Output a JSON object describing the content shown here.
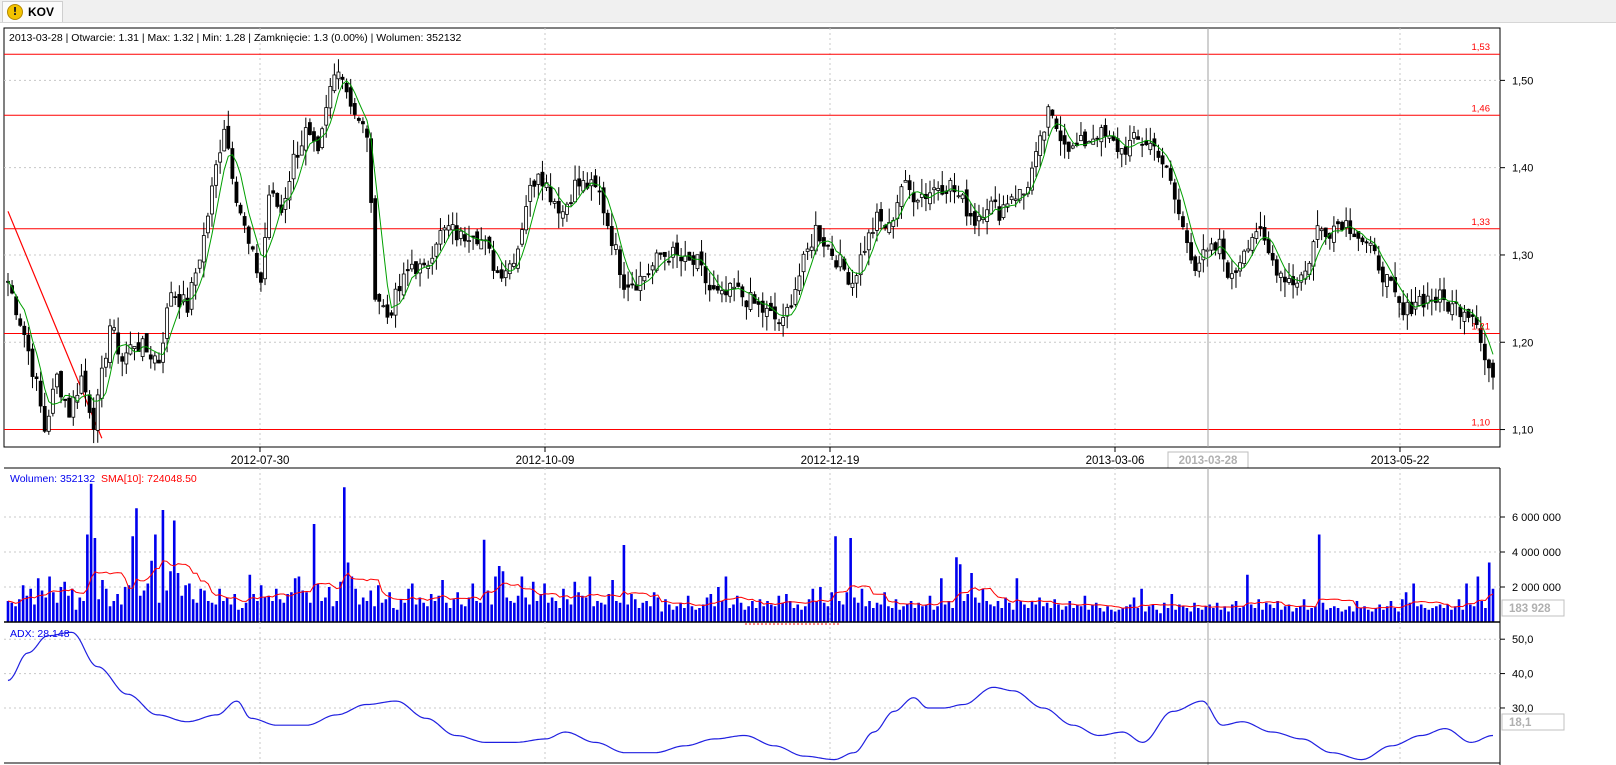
{
  "tab": {
    "label": "KOV",
    "icon": "warning-icon"
  },
  "info_bar": "2013-03-28 | Otwarcie: 1.31 | Max: 1.32 | Min: 1.28 | Zamknięcie: 1.3 (0.00%)  | Wolumen: 352132",
  "colors": {
    "candle": "#000000",
    "sma": "#008000",
    "level": "#ff0000",
    "volume": "#0000ee",
    "volume_sma": "#ff0000",
    "adx": "#2020e0",
    "grid": "#c8c8c8"
  },
  "chart_data": [
    {
      "type": "candlestick",
      "title": "2013-03-28 | Otwarcie: 1.31 | Max: 1.32 | Min: 1.28 | Zamknięcie: 1.3 (0.00%)  | Wolumen: 352132",
      "ylim": [
        1.08,
        1.56
      ],
      "y_ticks": [
        "1,10",
        "1,20",
        "1,30",
        "1,40",
        "1,50"
      ],
      "x_ticks": [
        "2012-07-30",
        "2012-10-09",
        "2012-12-19",
        "2013-03-06",
        "2013-05-22"
      ],
      "cursor_label": "2013-03-28",
      "levels": [
        {
          "value": 1.53,
          "label": "1,53"
        },
        {
          "value": 1.46,
          "label": "1,46"
        },
        {
          "value": 1.33,
          "label": "1,33"
        },
        {
          "value": 1.21,
          "label": "1,21"
        },
        {
          "value": 1.1,
          "label": "1,10"
        }
      ],
      "trendline": [
        [
          0,
          1.35
        ],
        [
          23,
          1.09
        ]
      ],
      "grid": true,
      "anchors": [
        [
          0,
          1.27
        ],
        [
          4,
          1.21
        ],
        [
          7,
          1.15
        ],
        [
          9,
          1.1
        ],
        [
          12,
          1.16
        ],
        [
          15,
          1.12
        ],
        [
          18,
          1.16
        ],
        [
          21,
          1.11
        ],
        [
          22,
          1.13
        ],
        [
          25,
          1.22
        ],
        [
          28,
          1.18
        ],
        [
          31,
          1.2
        ],
        [
          34,
          1.19
        ],
        [
          37,
          1.18
        ],
        [
          40,
          1.26
        ],
        [
          44,
          1.24
        ],
        [
          48,
          1.32
        ],
        [
          51,
          1.4
        ],
        [
          53,
          1.45
        ],
        [
          56,
          1.37
        ],
        [
          59,
          1.31
        ],
        [
          62,
          1.27
        ],
        [
          64,
          1.37
        ],
        [
          67,
          1.35
        ],
        [
          70,
          1.41
        ],
        [
          73,
          1.44
        ],
        [
          76,
          1.41
        ],
        [
          79,
          1.49
        ],
        [
          81,
          1.52
        ],
        [
          83,
          1.49
        ],
        [
          86,
          1.45
        ],
        [
          88,
          1.44
        ],
        [
          90,
          1.26
        ],
        [
          93,
          1.23
        ],
        [
          96,
          1.26
        ],
        [
          99,
          1.29
        ],
        [
          102,
          1.28
        ],
        [
          105,
          1.32
        ],
        [
          108,
          1.33
        ],
        [
          111,
          1.32
        ],
        [
          114,
          1.33
        ],
        [
          117,
          1.31
        ],
        [
          120,
          1.28
        ],
        [
          123,
          1.29
        ],
        [
          125,
          1.31
        ],
        [
          127,
          1.36
        ],
        [
          130,
          1.4
        ],
        [
          133,
          1.37
        ],
        [
          136,
          1.35
        ],
        [
          139,
          1.38
        ],
        [
          142,
          1.38
        ],
        [
          145,
          1.37
        ],
        [
          148,
          1.32
        ],
        [
          151,
          1.27
        ],
        [
          154,
          1.27
        ],
        [
          157,
          1.28
        ],
        [
          160,
          1.3
        ],
        [
          163,
          1.3
        ],
        [
          166,
          1.29
        ],
        [
          169,
          1.29
        ],
        [
          172,
          1.26
        ],
        [
          175,
          1.25
        ],
        [
          178,
          1.26
        ],
        [
          181,
          1.25
        ],
        [
          184,
          1.24
        ],
        [
          187,
          1.23
        ],
        [
          190,
          1.22
        ],
        [
          192,
          1.25
        ],
        [
          195,
          1.29
        ],
        [
          198,
          1.33
        ],
        [
          201,
          1.31
        ],
        [
          204,
          1.29
        ],
        [
          207,
          1.27
        ],
        [
          210,
          1.31
        ],
        [
          213,
          1.34
        ],
        [
          216,
          1.33
        ],
        [
          219,
          1.38
        ],
        [
          222,
          1.37
        ],
        [
          225,
          1.37
        ],
        [
          228,
          1.38
        ],
        [
          231,
          1.38
        ],
        [
          234,
          1.36
        ],
        [
          237,
          1.34
        ],
        [
          240,
          1.36
        ],
        [
          243,
          1.35
        ],
        [
          246,
          1.37
        ],
        [
          249,
          1.37
        ],
        [
          252,
          1.41
        ],
        [
          255,
          1.46
        ],
        [
          258,
          1.44
        ],
        [
          261,
          1.42
        ],
        [
          264,
          1.43
        ],
        [
          267,
          1.44
        ],
        [
          270,
          1.43
        ],
        [
          273,
          1.42
        ],
        [
          276,
          1.43
        ],
        [
          279,
          1.43
        ],
        [
          282,
          1.42
        ],
        [
          285,
          1.38
        ],
        [
          288,
          1.33
        ],
        [
          291,
          1.29
        ],
        [
          294,
          1.3
        ],
        [
          297,
          1.31
        ],
        [
          300,
          1.27
        ],
        [
          303,
          1.31
        ],
        [
          306,
          1.33
        ],
        [
          309,
          1.3
        ],
        [
          312,
          1.28
        ],
        [
          315,
          1.27
        ],
        [
          318,
          1.28
        ],
        [
          321,
          1.33
        ],
        [
          324,
          1.33
        ],
        [
          327,
          1.34
        ],
        [
          330,
          1.33
        ],
        [
          333,
          1.31
        ],
        [
          336,
          1.29
        ],
        [
          339,
          1.26
        ],
        [
          342,
          1.23
        ],
        [
          345,
          1.25
        ],
        [
          348,
          1.25
        ],
        [
          351,
          1.25
        ],
        [
          354,
          1.24
        ],
        [
          357,
          1.24
        ],
        [
          360,
          1.23
        ],
        [
          362,
          1.18
        ],
        [
          364,
          1.16
        ]
      ]
    },
    {
      "type": "bar",
      "title": "Wolumen: 352132",
      "series": [
        {
          "name": "Wolumen: 352132",
          "color": "#0000ee"
        },
        {
          "name": "SMA[10]: 724048.50",
          "color": "#ff0000"
        }
      ],
      "y_ticks": [
        "2 000 000",
        "4 000 000",
        "6 000 000"
      ],
      "value_label": "183 928",
      "ylim": [
        0,
        8000000
      ],
      "volume_m": [
        1.2,
        1.1,
        0.9,
        1.3,
        2.1,
        1.5,
        1.9,
        1.0,
        2.5,
        1.8,
        1.4,
        2.6,
        1.7,
        1.1,
        2.0,
        2.3,
        1.5,
        1.9,
        0.7,
        1.4,
        1.2,
        5.0,
        7.9,
        4.8,
        1.3,
        2.4,
        1.9,
        0.9,
        1.2,
        1.6,
        1.0,
        2.0,
        2.1,
        4.9,
        6.5,
        1.5,
        1.8,
        2.2,
        3.5,
        5.0,
        1.1,
        6.4,
        1.8,
        2.9,
        5.8,
        2.8,
        1.5,
        2.1,
        2.2,
        1.3,
        1.1,
        1.9,
        1.8,
        1.2,
        1.1,
        1.0,
        1.9,
        1.2,
        1.4,
        1.0,
        1.6,
        0.7,
        0.8,
        1.1,
        2.7,
        1.6,
        1.2,
        2.1,
        1.4,
        1.5,
        1.2,
        1.9,
        1.3,
        1.1,
        1.6,
        1.7,
        2.5,
        2.6,
        1.8,
        1.7,
        1.1,
        5.6,
        2.2,
        1.2,
        1.4,
        2.0,
        0.9,
        1.2,
        2.3,
        7.7,
        3.4,
        2.6,
        1.9,
        1.0,
        1.4,
        1.2,
        1.8,
        0.9,
        2.1,
        1.1,
        1.3,
        1.7,
        0.8,
        0.7,
        1.3,
        1.1,
        1.9,
        2.2,
        1.0,
        1.4,
        1.1,
        0.9,
        1.6,
        1.2,
        1.5,
        2.4,
        1.1,
        0.8,
        1.3,
        1.7,
        1.0,
        0.9,
        1.4,
        2.2,
        1.2,
        1.1,
        4.7,
        1.8,
        1.0,
        2.6,
        3.2,
        2.9,
        1.4,
        1.2,
        1.1,
        1.5,
        2.6,
        1.4,
        1.0,
        2.3,
        1.2,
        1.6,
        2.2,
        1.1,
        1.4,
        1.2,
        0.8,
        1.9,
        1.3,
        1.0,
        2.3,
        1.7,
        1.5,
        1.4,
        2.6,
        0.9,
        1.2,
        1.1,
        1.0,
        1.6,
        2.4,
        1.2,
        1.1,
        4.4,
        1.0,
        1.6,
        1.3,
        0.8,
        1.1,
        1.2,
        0.9,
        1.7,
        1.4,
        0.6,
        1.3,
        1.0,
        0.7,
        0.9,
        1.1,
        0.8,
        1.5,
        0.9,
        0.7,
        0.8,
        1.0,
        1.4,
        1.6,
        0.9,
        2.0,
        1.2,
        2.6,
        0.8,
        1.0,
        1.5,
        1.1,
        0.7,
        0.9,
        1.2,
        0.8,
        1.3,
        0.9,
        1.2,
        1.0,
        0.9,
        1.5,
        1.1,
        1.6,
        1.2,
        0.8,
        1.0,
        0.7,
        0.9,
        1.3,
        1.9,
        1.2,
        2.0,
        1.1,
        0.9,
        1.7,
        4.9,
        1.2,
        1.0,
        1.7,
        4.8,
        1.4,
        1.1,
        1.9,
        0.9,
        1.2,
        0.8,
        1.1,
        1.0,
        1.7,
        0.9,
        0.8,
        1.3,
        0.7,
        0.9,
        1.0,
        1.2,
        0.8,
        1.1,
        0.9,
        1.0,
        1.5,
        0.7,
        0.9,
        2.5,
        1.0,
        1.2,
        0.8,
        3.7,
        3.3,
        1.2,
        1.6,
        2.8,
        1.4,
        1.1,
        1.9,
        1.2,
        1.0,
        0.9,
        1.2,
        0.8,
        1.4,
        1.1,
        0.7,
        2.5,
        1.2,
        1.0,
        0.8,
        1.2,
        1.0,
        1.4,
        0.9,
        1.1,
        0.8,
        1.3,
        1.0,
        0.7,
        0.9,
        1.2,
        0.8,
        1.0,
        0.9,
        1.5,
        0.7,
        1.0,
        1.1,
        0.8,
        0.6,
        0.9,
        0.7,
        0.6,
        0.7,
        0.8,
        0.9,
        1.0,
        1.4,
        0.8,
        1.9,
        0.6,
        0.9,
        1.0,
        0.7,
        0.5,
        1.1,
        0.8,
        1.6,
        0.7,
        1.0,
        0.9,
        0.8,
        0.6,
        1.1,
        0.8,
        0.7,
        0.9,
        1.0,
        0.8,
        1.1,
        0.7,
        0.9,
        0.6,
        1.0,
        1.2,
        0.8,
        0.9,
        2.7,
        1.0,
        0.8,
        1.3,
        0.7,
        1.1,
        1.0,
        0.8,
        1.2,
        0.7,
        0.9,
        1.0,
        0.6,
        0.8,
        0.9,
        1.3,
        0.7,
        0.8,
        0.9,
        5.0,
        1.1,
        0.7,
        0.8,
        0.9,
        0.8,
        0.6,
        0.7,
        0.9,
        0.6,
        1.2,
        0.8,
        0.9,
        0.7,
        0.6,
        0.8,
        1.0,
        0.7,
        0.9,
        1.2,
        0.8,
        0.6,
        1.3,
        1.7,
        1.1,
        2.2,
        0.9,
        1.0,
        0.8,
        0.7,
        0.8,
        0.9,
        1.0,
        0.8,
        1.0,
        0.7,
        0.9,
        1.3,
        0.7,
        2.2,
        1.0,
        0.9,
        2.6,
        1.2,
        0.8,
        3.4,
        1.9
      ]
    },
    {
      "type": "line",
      "title": "ADX: 28.148",
      "series": [
        {
          "name": "ADX: 28.148",
          "color": "#2020e0"
        }
      ],
      "y_ticks": [
        "30,0",
        "40,0",
        "50,0"
      ],
      "value_label": "18,1",
      "ylim": [
        14,
        55
      ],
      "adx_anchors": [
        [
          0,
          38
        ],
        [
          10,
          46
        ],
        [
          20,
          51
        ],
        [
          32,
          52
        ],
        [
          45,
          42
        ],
        [
          60,
          34
        ],
        [
          75,
          28
        ],
        [
          90,
          26
        ],
        [
          105,
          28
        ],
        [
          115,
          32
        ],
        [
          122,
          27
        ],
        [
          135,
          25
        ],
        [
          150,
          25
        ],
        [
          165,
          28
        ],
        [
          180,
          31
        ],
        [
          195,
          32
        ],
        [
          210,
          27
        ],
        [
          225,
          22
        ],
        [
          240,
          20
        ],
        [
          255,
          20
        ],
        [
          270,
          21
        ],
        [
          280,
          23
        ],
        [
          295,
          20
        ],
        [
          310,
          17
        ],
        [
          325,
          17
        ],
        [
          340,
          19
        ],
        [
          355,
          21
        ],
        [
          370,
          22
        ],
        [
          385,
          19
        ],
        [
          400,
          16
        ],
        [
          415,
          15
        ],
        [
          425,
          17
        ],
        [
          435,
          23
        ],
        [
          445,
          29
        ],
        [
          455,
          33
        ],
        [
          462,
          30
        ],
        [
          470,
          30
        ],
        [
          480,
          31
        ],
        [
          495,
          36
        ],
        [
          505,
          35
        ],
        [
          520,
          30
        ],
        [
          535,
          25
        ],
        [
          548,
          22
        ],
        [
          560,
          23
        ],
        [
          570,
          20
        ],
        [
          585,
          29
        ],
        [
          600,
          32
        ],
        [
          610,
          25
        ],
        [
          620,
          26
        ],
        [
          635,
          23
        ],
        [
          650,
          21
        ],
        [
          665,
          17
        ],
        [
          680,
          15
        ],
        [
          695,
          19
        ],
        [
          710,
          22
        ],
        [
          722,
          24
        ],
        [
          735,
          20
        ],
        [
          746,
          22
        ]
      ]
    }
  ]
}
